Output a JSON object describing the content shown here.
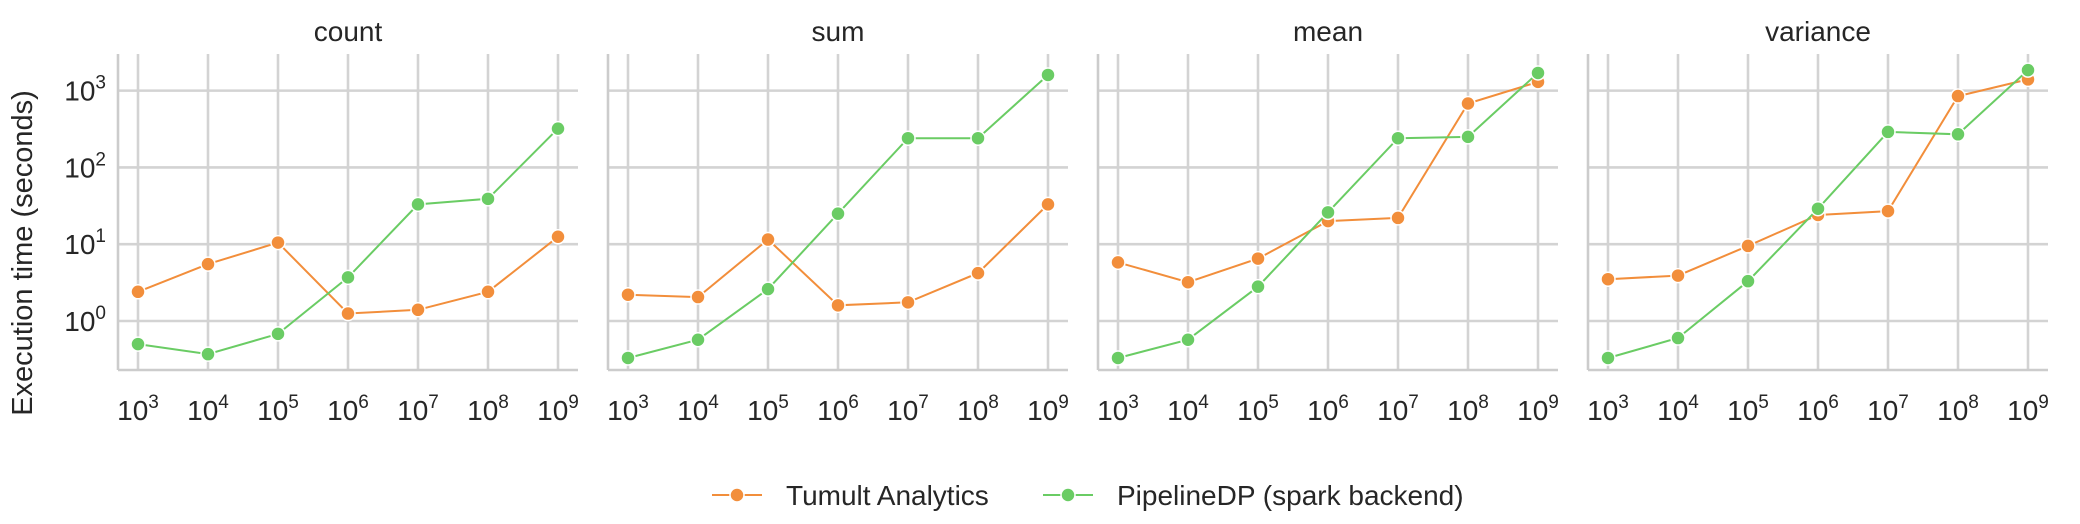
{
  "colors": {
    "tumult": "#f28e3b",
    "pipelinedp": "#6acc64",
    "grid": "#d3d3d3",
    "text": "#262626"
  },
  "legend": {
    "placement": "bottom-center",
    "items": [
      "Tumult Analytics",
      "PipelineDP (spark backend)"
    ]
  },
  "chart_data": [
    {
      "type": "line",
      "title": "count",
      "ylabel": "Execution time (seconds)",
      "xscale": "log",
      "yscale": "log",
      "grid": true,
      "x": [
        1000,
        10000,
        100000,
        1000000,
        10000000,
        100000000,
        1000000000
      ],
      "x_ticks": [
        {
          "base": "10",
          "exp": "3"
        },
        {
          "base": "10",
          "exp": "4"
        },
        {
          "base": "10",
          "exp": "5"
        },
        {
          "base": "10",
          "exp": "6"
        },
        {
          "base": "10",
          "exp": "7"
        },
        {
          "base": "10",
          "exp": "8"
        },
        {
          "base": "10",
          "exp": "9"
        }
      ],
      "y_ticks": [
        {
          "value": 1,
          "base": "10",
          "exp": "0"
        },
        {
          "value": 10,
          "base": "10",
          "exp": "1"
        },
        {
          "value": 100,
          "base": "10",
          "exp": "2"
        },
        {
          "value": 1000,
          "base": "10",
          "exp": "3"
        }
      ],
      "ylim": [
        0.23,
        3000
      ],
      "series": [
        {
          "name": "Tumult Analytics",
          "values": [
            2.4,
            5.5,
            10.5,
            1.25,
            1.4,
            2.4,
            12.5
          ]
        },
        {
          "name": "PipelineDP (spark backend)",
          "values": [
            0.5,
            0.37,
            0.68,
            3.7,
            33,
            39,
            320
          ]
        }
      ]
    },
    {
      "type": "line",
      "title": "sum",
      "xscale": "log",
      "yscale": "log",
      "grid": true,
      "x": [
        1000,
        10000,
        100000,
        1000000,
        10000000,
        100000000,
        1000000000
      ],
      "x_ticks": [
        {
          "base": "10",
          "exp": "3"
        },
        {
          "base": "10",
          "exp": "4"
        },
        {
          "base": "10",
          "exp": "5"
        },
        {
          "base": "10",
          "exp": "6"
        },
        {
          "base": "10",
          "exp": "7"
        },
        {
          "base": "10",
          "exp": "8"
        },
        {
          "base": "10",
          "exp": "9"
        }
      ],
      "ylim": [
        0.23,
        3000
      ],
      "series": [
        {
          "name": "Tumult Analytics",
          "values": [
            2.2,
            2.05,
            11.5,
            1.6,
            1.75,
            4.2,
            33
          ]
        },
        {
          "name": "PipelineDP (spark backend)",
          "values": [
            0.33,
            0.57,
            2.6,
            25,
            240,
            240,
            1600
          ]
        }
      ]
    },
    {
      "type": "line",
      "title": "mean",
      "xscale": "log",
      "yscale": "log",
      "grid": true,
      "x": [
        1000,
        10000,
        100000,
        1000000,
        10000000,
        100000000,
        1000000000
      ],
      "x_ticks": [
        {
          "base": "10",
          "exp": "3"
        },
        {
          "base": "10",
          "exp": "4"
        },
        {
          "base": "10",
          "exp": "5"
        },
        {
          "base": "10",
          "exp": "6"
        },
        {
          "base": "10",
          "exp": "7"
        },
        {
          "base": "10",
          "exp": "8"
        },
        {
          "base": "10",
          "exp": "9"
        }
      ],
      "ylim": [
        0.23,
        3000
      ],
      "series": [
        {
          "name": "Tumult Analytics",
          "values": [
            5.8,
            3.2,
            6.5,
            20,
            22,
            680,
            1300
          ]
        },
        {
          "name": "PipelineDP (spark backend)",
          "values": [
            0.33,
            0.57,
            2.8,
            26,
            240,
            250,
            1700
          ]
        }
      ]
    },
    {
      "type": "line",
      "title": "variance",
      "xscale": "log",
      "yscale": "log",
      "grid": true,
      "x": [
        1000,
        10000,
        100000,
        1000000,
        10000000,
        100000000,
        1000000000
      ],
      "x_ticks": [
        {
          "base": "10",
          "exp": "3"
        },
        {
          "base": "10",
          "exp": "4"
        },
        {
          "base": "10",
          "exp": "5"
        },
        {
          "base": "10",
          "exp": "6"
        },
        {
          "base": "10",
          "exp": "7"
        },
        {
          "base": "10",
          "exp": "8"
        },
        {
          "base": "10",
          "exp": "9"
        }
      ],
      "ylim": [
        0.23,
        3000
      ],
      "series": [
        {
          "name": "Tumult Analytics",
          "values": [
            3.5,
            3.9,
            9.5,
            24,
            27,
            850,
            1400
          ]
        },
        {
          "name": "PipelineDP (spark backend)",
          "values": [
            0.33,
            0.6,
            3.3,
            29,
            290,
            270,
            1850
          ]
        }
      ]
    }
  ]
}
